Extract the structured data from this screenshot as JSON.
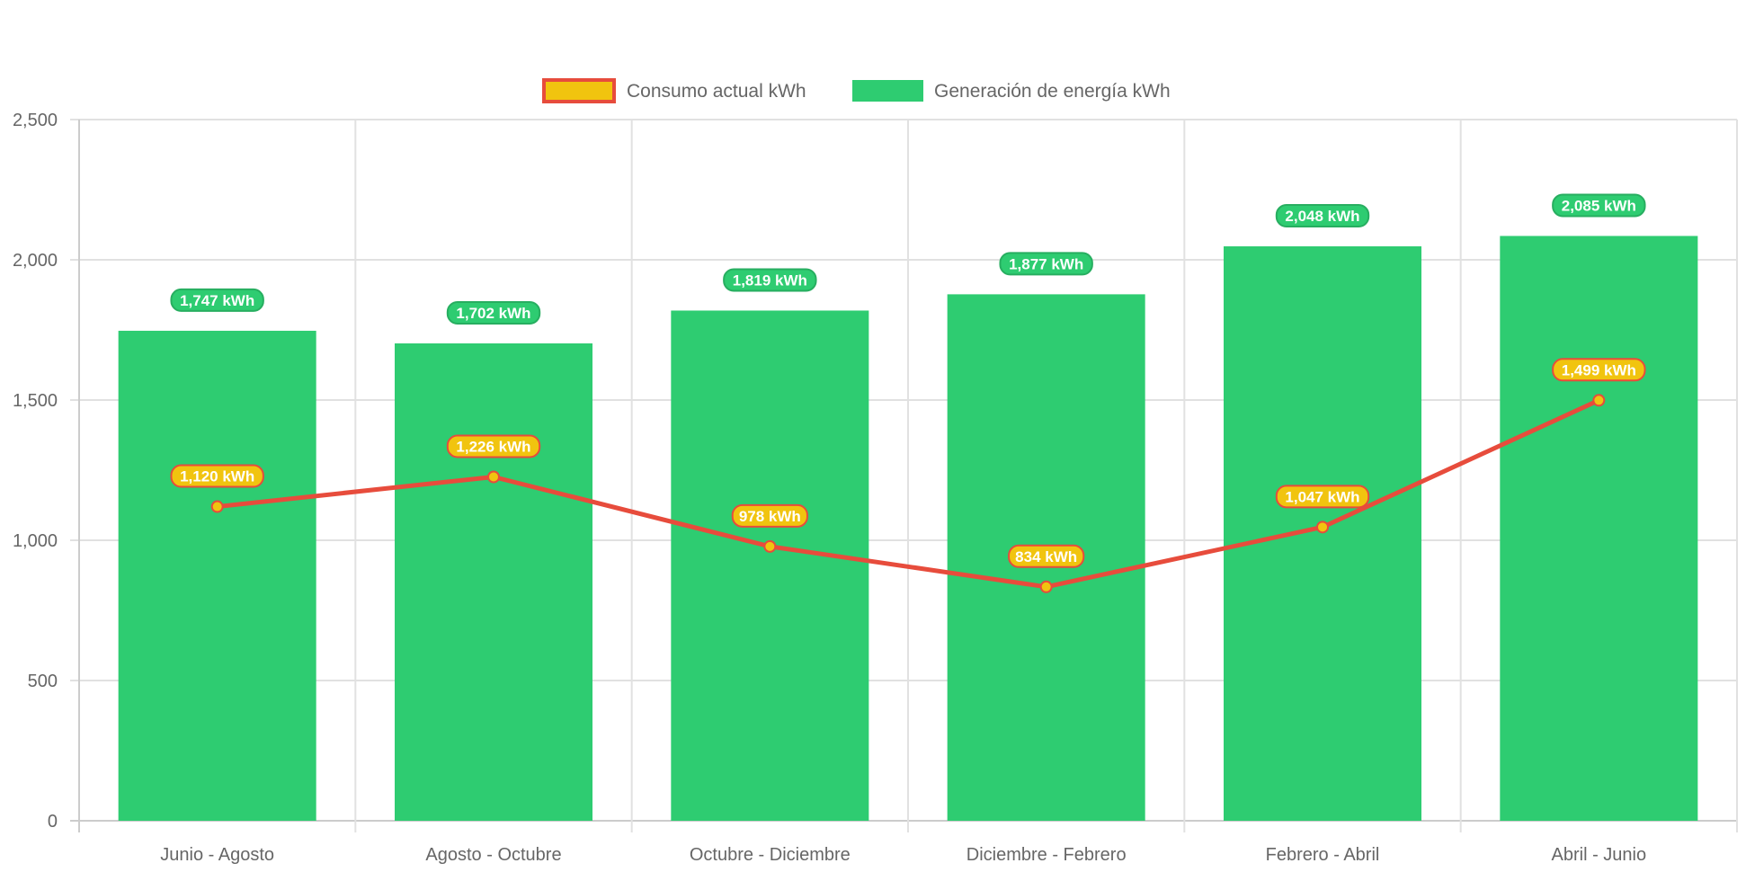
{
  "chart_data": {
    "type": "bar",
    "categories": [
      "Junio - Agosto",
      "Agosto - Octubre",
      "Octubre - Diciembre",
      "Diciembre - Febrero",
      "Febrero - Abril",
      "Abril - Junio"
    ],
    "series": [
      {
        "name": "Consumo actual kWh",
        "type": "line",
        "values": [
          1120,
          1226,
          978,
          834,
          1047,
          1499
        ],
        "labels": [
          "1,120 kWh",
          "1,226 kWh",
          "978 kWh",
          "834 kWh",
          "1,047 kWh",
          "1,499 kWh"
        ],
        "color": "#e74c3c",
        "fill": "#f1c40f"
      },
      {
        "name": "Generación de energía kWh",
        "type": "bar",
        "values": [
          1747,
          1702,
          1819,
          1877,
          2048,
          2085
        ],
        "labels": [
          "1,747 kWh",
          "1,702 kWh",
          "1,819 kWh",
          "1,877 kWh",
          "2,048 kWh",
          "2,085 kWh"
        ],
        "color": "#2ecc71",
        "border": "#27ae60"
      }
    ],
    "yticks": [
      "0",
      "500",
      "1,000",
      "1,500",
      "2,000",
      "2,500"
    ],
    "ylim": [
      0,
      2500
    ],
    "grid": true,
    "legend": "top-center"
  }
}
